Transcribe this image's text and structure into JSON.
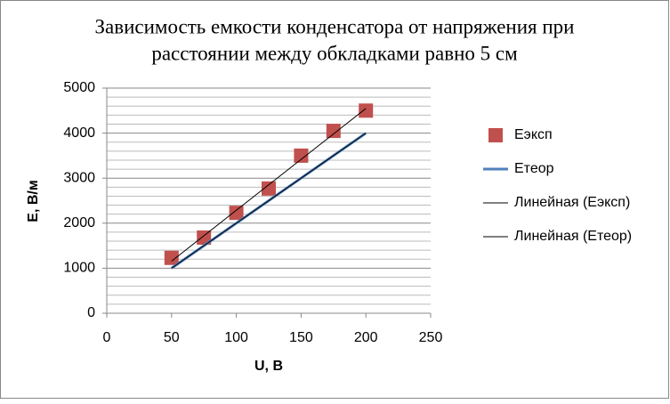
{
  "chart_data": {
    "type": "scatter",
    "title": [
      "Зависимость емкости конденсатора от напряжения при",
      "расстоянии между обкладками равно 5 см"
    ],
    "x_label": "U, B",
    "y_label": "E, B/м",
    "x": [
      50,
      75,
      100,
      125,
      150,
      175,
      200
    ],
    "series": [
      {
        "name": "Еэксп",
        "color": "#c0504d",
        "marker": "square",
        "values": [
          1230,
          1680,
          2230,
          2770,
          3500,
          4050,
          4500
        ]
      },
      {
        "name": "Етеор",
        "color": "#4f81bd",
        "marker": "line",
        "values": [
          1000,
          1500,
          2000,
          2500,
          3000,
          3500,
          4000
        ]
      }
    ],
    "trendlines": [
      {
        "name": "Линейная (Еэксп)",
        "series": 0,
        "color": "#000000"
      },
      {
        "name": "Линейная (Етеор)",
        "series": 1,
        "color": "#000000"
      }
    ],
    "xlim": [
      0,
      250
    ],
    "xticks": [
      0,
      50,
      100,
      150,
      200,
      250
    ],
    "ylim": [
      0,
      5000
    ],
    "yticks": [
      0,
      1000,
      2000,
      3000,
      4000,
      5000
    ],
    "grid": true,
    "minor_grid": true,
    "legend": "right"
  }
}
